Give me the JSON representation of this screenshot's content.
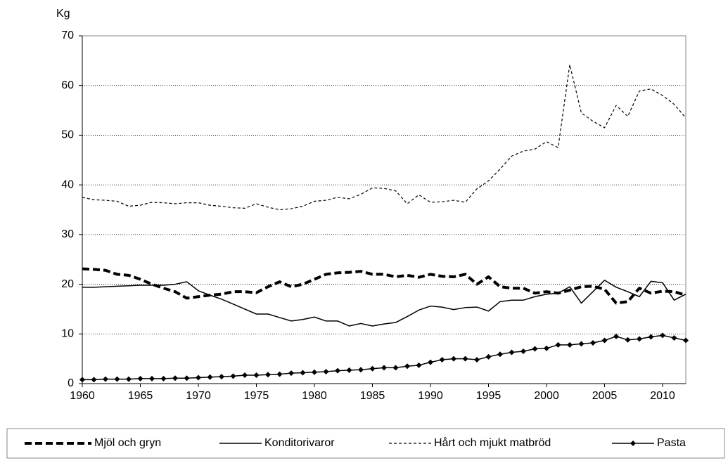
{
  "chart_data": {
    "type": "line",
    "y_axis_label": "Kg",
    "x": [
      1960,
      1961,
      1962,
      1963,
      1964,
      1965,
      1966,
      1967,
      1968,
      1969,
      1970,
      1971,
      1972,
      1973,
      1974,
      1975,
      1976,
      1977,
      1978,
      1979,
      1980,
      1981,
      1982,
      1983,
      1984,
      1985,
      1986,
      1987,
      1988,
      1989,
      1990,
      1991,
      1992,
      1993,
      1994,
      1995,
      1996,
      1997,
      1998,
      1999,
      2000,
      2001,
      2002,
      2003,
      2004,
      2005,
      2006,
      2007,
      2008,
      2009,
      2010,
      2011,
      2012
    ],
    "series": [
      {
        "name": "Mjöl och gryn",
        "color": "#000000",
        "values": [
          23.1,
          23,
          22.8,
          22,
          21.8,
          21,
          20,
          19.2,
          18.5,
          17.2,
          17.5,
          17.8,
          18,
          18.5,
          18.5,
          18.3,
          19.5,
          20.5,
          19.5,
          20,
          21,
          22,
          22.3,
          22.4,
          22.6,
          22,
          22,
          21.5,
          21.8,
          21.4,
          22,
          21.6,
          21.5,
          22,
          20,
          21.5,
          19.5,
          19.2,
          19.2,
          18.2,
          18.5,
          18.2,
          18.8,
          19.5,
          19.6,
          19,
          16.2,
          16.5,
          19.2,
          18.2,
          18.6,
          18.5,
          17.8
        ]
      },
      {
        "name": "Konditorivaror",
        "color": "#000000",
        "values": [
          19.4,
          19.4,
          19.5,
          19.6,
          19.7,
          19.8,
          19.8,
          19.8,
          20,
          20.5,
          18.7,
          17.8,
          17,
          16,
          15,
          14,
          14,
          13.3,
          12.6,
          12.9,
          13.4,
          12.6,
          12.6,
          11.6,
          12.1,
          11.6,
          12,
          12.3,
          13.5,
          14.8,
          15.6,
          15.4,
          14.9,
          15.3,
          15.4,
          14.6,
          16.5,
          16.8,
          16.8,
          17.5,
          18,
          18.2,
          19.5,
          16.2,
          18.5,
          20.8,
          19.4,
          18.5,
          17.5,
          20.6,
          20.3,
          16.8,
          18
        ]
      },
      {
        "name": "Hårt och mjukt matbröd",
        "color": "#000000",
        "values": [
          37.5,
          37,
          36.9,
          36.7,
          35.7,
          35.9,
          36.5,
          36.4,
          36.2,
          36.4,
          36.4,
          35.9,
          35.7,
          35.4,
          35.3,
          36.2,
          35.5,
          35,
          35.2,
          35.7,
          36.7,
          36.9,
          37.5,
          37.2,
          38.1,
          39.4,
          39.3,
          38.8,
          36.2,
          38,
          36.5,
          36.6,
          36.9,
          36.5,
          39.2,
          40.8,
          43.2,
          45.8,
          46.8,
          47.2,
          48.7,
          47.5,
          64.2,
          54.5,
          52.8,
          51.5,
          56,
          53.8,
          58.9,
          59.3,
          58,
          56.2,
          53.5
        ]
      },
      {
        "name": "Pasta",
        "color": "#000000",
        "values": [
          0.8,
          0.8,
          0.9,
          0.9,
          0.9,
          1,
          1,
          1,
          1.1,
          1.1,
          1.2,
          1.3,
          1.4,
          1.5,
          1.7,
          1.7,
          1.8,
          1.9,
          2.1,
          2.2,
          2.3,
          2.4,
          2.6,
          2.7,
          2.8,
          3,
          3.2,
          3.2,
          3.5,
          3.7,
          4.3,
          4.8,
          5,
          5,
          4.8,
          5.4,
          5.9,
          6.3,
          6.5,
          7,
          7.1,
          7.8,
          7.8,
          8,
          8.2,
          8.7,
          9.5,
          8.8,
          9,
          9.4,
          9.7,
          9.2,
          8.7
        ]
      }
    ],
    "xlim": [
      1960,
      2012
    ],
    "xticks": [
      1960,
      1965,
      1970,
      1975,
      1980,
      1985,
      1990,
      1995,
      2000,
      2005,
      2010
    ],
    "ylim": [
      0,
      70
    ],
    "yticks": [
      0,
      10,
      20,
      30,
      40,
      50,
      60,
      70
    ],
    "grid": true,
    "legend": "bottom"
  }
}
